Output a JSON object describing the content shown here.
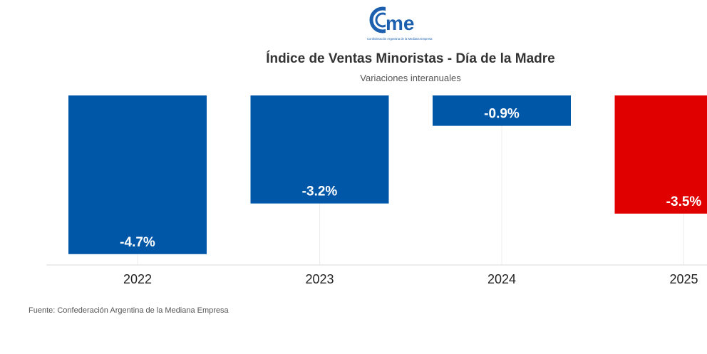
{
  "logo": {
    "text": "cme",
    "tagline": "Confederación Argentina de la Mediana Empresa"
  },
  "header": {
    "title": "Índice de Ventas Minoristas - Día de la Madre",
    "subtitle": "Variaciones interanuales"
  },
  "footer": {
    "source": "Fuente: Confederación Argentina de la Mediana Empresa"
  },
  "chart_data": {
    "type": "bar",
    "title": "Índice de Ventas Minoristas - Día de la Madre",
    "subtitle": "Variaciones interanuales",
    "categories": [
      "2022",
      "2023",
      "2024",
      "2025"
    ],
    "values": [
      -4.7,
      -3.2,
      -0.9,
      -3.5
    ],
    "labels": [
      "-4.7%",
      "-3.2%",
      "-0.9%",
      "-3.5%"
    ],
    "colors": [
      "#0057a8",
      "#0057a8",
      "#0057a8",
      "#e00000"
    ],
    "ylim": [
      -5,
      0
    ],
    "xlabel": "",
    "ylabel": ""
  }
}
